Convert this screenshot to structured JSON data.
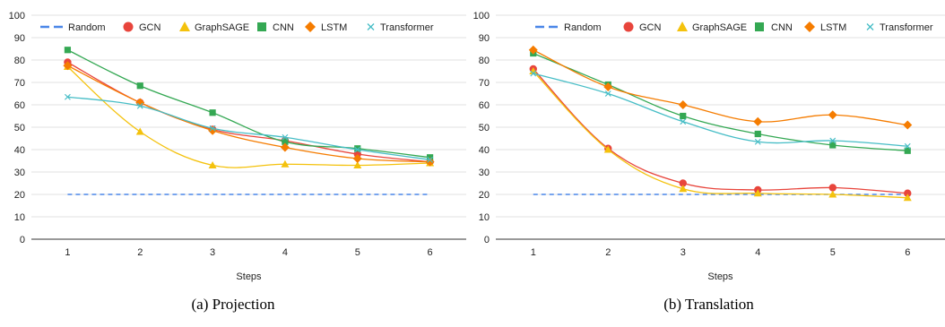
{
  "series_styles": [
    {
      "name": "Random",
      "color": "#4a86e8",
      "marker": "dash"
    },
    {
      "name": "GCN",
      "color": "#e8453c",
      "marker": "circle"
    },
    {
      "name": "GraphSAGE",
      "color": "#f4c20d",
      "marker": "triangle"
    },
    {
      "name": "CNN",
      "color": "#34a853",
      "marker": "square"
    },
    {
      "name": "LSTM",
      "color": "#f57c00",
      "marker": "diamond"
    },
    {
      "name": "Transformer",
      "color": "#46bdc6",
      "marker": "x"
    }
  ],
  "chart_data": [
    {
      "type": "line",
      "caption": "(a) Projection",
      "xlabel": "Steps",
      "ylabel": "",
      "x": [
        1,
        2,
        3,
        4,
        5,
        6
      ],
      "ylim": [
        0,
        100
      ],
      "yticks": [
        0,
        10,
        20,
        30,
        40,
        50,
        60,
        70,
        80,
        90,
        100
      ],
      "grid": true,
      "legend": "top",
      "series": [
        {
          "name": "Random",
          "values": [
            20,
            20,
            20,
            20,
            20,
            20
          ]
        },
        {
          "name": "GCN",
          "values": [
            79,
            61,
            49,
            44,
            38,
            34.5
          ]
        },
        {
          "name": "GraphSAGE",
          "values": [
            77,
            48,
            33,
            33.5,
            33,
            34
          ]
        },
        {
          "name": "CNN",
          "values": [
            84.5,
            68.5,
            56.5,
            43.5,
            40.5,
            36.5
          ]
        },
        {
          "name": "LSTM",
          "values": [
            77.5,
            61,
            48.5,
            41,
            36,
            34.5
          ]
        },
        {
          "name": "Transformer",
          "values": [
            63.5,
            59.5,
            49.5,
            45.5,
            40,
            35.5
          ]
        }
      ]
    },
    {
      "type": "line",
      "caption": "(b) Translation",
      "xlabel": "Steps",
      "ylabel": "",
      "x": [
        1,
        2,
        3,
        4,
        5,
        6
      ],
      "ylim": [
        0,
        100
      ],
      "yticks": [
        0,
        10,
        20,
        30,
        40,
        50,
        60,
        70,
        80,
        90,
        100
      ],
      "grid": true,
      "legend": "top",
      "series": [
        {
          "name": "Random",
          "values": [
            20,
            20,
            20,
            20,
            20,
            20
          ]
        },
        {
          "name": "GCN",
          "values": [
            76,
            40.5,
            25,
            22,
            23,
            20.5
          ]
        },
        {
          "name": "GraphSAGE",
          "values": [
            75,
            40,
            22.5,
            20.5,
            20,
            18.5
          ]
        },
        {
          "name": "CNN",
          "values": [
            83,
            69,
            55,
            47,
            42,
            39.5
          ]
        },
        {
          "name": "LSTM",
          "values": [
            84.5,
            68,
            60,
            52.5,
            55.5,
            51
          ]
        },
        {
          "name": "Transformer",
          "values": [
            74,
            65,
            52.5,
            43.5,
            44,
            41.5
          ]
        }
      ]
    }
  ]
}
